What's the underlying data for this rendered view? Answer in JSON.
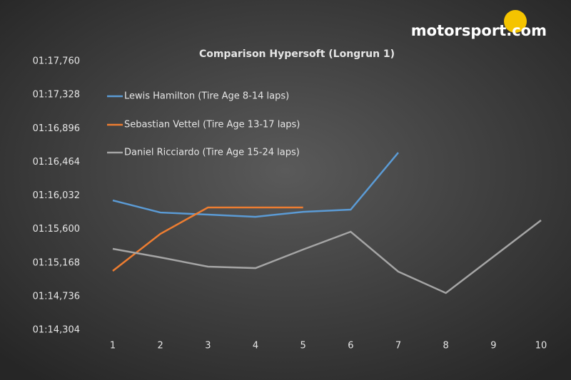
{
  "logo": "motorsport.com",
  "chart_data": {
    "type": "line",
    "title": "Comparison Hypersoft (Longrun 1)",
    "categories": [
      "1",
      "2",
      "3",
      "4",
      "5",
      "6",
      "7",
      "8",
      "9",
      "10"
    ],
    "series": [
      {
        "name": "Lewis Hamilton (Tire Age 8-14 laps)",
        "color": "#5b9bd5",
        "values": [
          75.972,
          75.816,
          75.789,
          75.761,
          75.825,
          75.853,
          76.586,
          null,
          null,
          null
        ]
      },
      {
        "name": "Sebastian Vettel (Tire Age 13-17 laps)",
        "color": "#ed7d31",
        "values": [
          75.065,
          75.541,
          75.881,
          75.881,
          75.881,
          null,
          null,
          null,
          null,
          null
        ]
      },
      {
        "name": "Daniel Ricciardo (Tire Age 15-24 laps)",
        "color": "#a5a5a5",
        "values": [
          75.349,
          75.239,
          75.12,
          75.101,
          75.34,
          75.569,
          75.056,
          74.781,
          75.248,
          75.716
        ]
      }
    ],
    "ylim": [
      74.304,
      77.76
    ],
    "yticks": [
      {
        "value": 74.304,
        "label": "01:14,304"
      },
      {
        "value": 74.736,
        "label": "01:14,736"
      },
      {
        "value": 75.168,
        "label": "01:15,168"
      },
      {
        "value": 75.6,
        "label": "01:15,600"
      },
      {
        "value": 76.032,
        "label": "01:16,032"
      },
      {
        "value": 76.464,
        "label": "01:16,464"
      },
      {
        "value": 76.896,
        "label": "01:16,896"
      },
      {
        "value": 77.328,
        "label": "01:17,328"
      },
      {
        "value": 77.76,
        "label": "01:17,760"
      }
    ],
    "grid": false,
    "legend": "upper left"
  }
}
